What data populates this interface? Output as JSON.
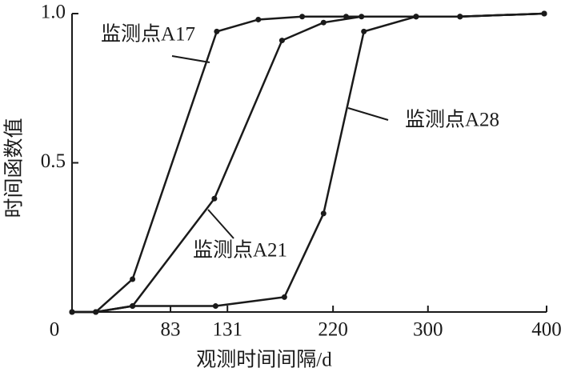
{
  "chart_data": {
    "type": "line",
    "xlabel": "观测时间间隔/d",
    "ylabel": "时间函数值",
    "xlim": [
      0,
      400
    ],
    "ylim": [
      0,
      1.0
    ],
    "xticks": [
      0,
      83,
      131,
      220,
      300,
      400
    ],
    "yticks": [
      {
        "value": 0.5,
        "label": "0.5"
      },
      {
        "value": 1,
        "label": "1.0"
      }
    ],
    "color": "#1a1a1a",
    "series": [
      {
        "name": "监测点A17",
        "x": [
          0,
          20,
          51,
          122,
          157,
          194,
          231,
          290,
          327,
          398
        ],
        "values": [
          0,
          0,
          0.11,
          0.94,
          0.98,
          0.99,
          0.99,
          0.99,
          0.99,
          1.0
        ]
      },
      {
        "name": "监测点A21",
        "x": [
          0,
          20,
          51,
          120,
          177,
          212,
          244,
          290,
          327,
          398
        ],
        "values": [
          0,
          0,
          0.02,
          0.38,
          0.91,
          0.97,
          0.99,
          0.99,
          0.99,
          1.0
        ]
      },
      {
        "name": "监测点A28",
        "x": [
          0,
          20,
          51,
          121,
          179,
          212,
          246,
          290,
          327,
          398
        ],
        "values": [
          0,
          0,
          0.02,
          0.02,
          0.05,
          0.33,
          0.94,
          0.99,
          0.99,
          1.0
        ]
      }
    ]
  }
}
